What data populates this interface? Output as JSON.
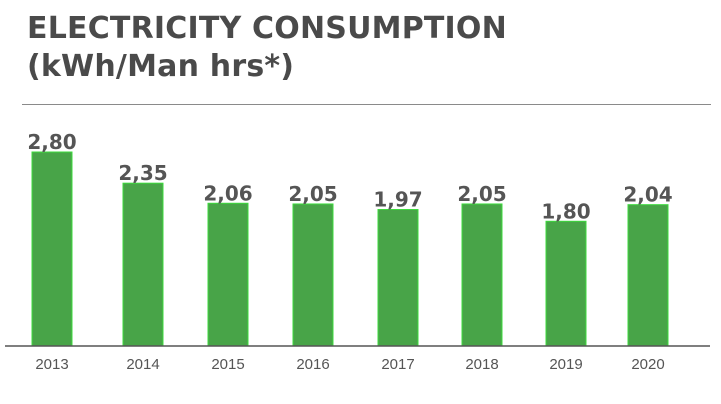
{
  "header": {
    "title_line1": "ELECTRICITY CONSUMPTION",
    "title_line2": "(kWh/Man hrs*)"
  },
  "footnote": "",
  "chart_data": {
    "type": "bar",
    "categories": [
      "2013",
      "2014",
      "2015",
      "2016",
      "2017",
      "2018",
      "2019",
      "2020"
    ],
    "values": [
      2.8,
      2.35,
      2.06,
      2.05,
      1.97,
      2.05,
      1.8,
      2.04
    ],
    "labels": [
      "2,80",
      "2,35",
      "2,06",
      "2,05",
      "1,97",
      "2,05",
      "1,80",
      "2,04"
    ],
    "title": "",
    "xlabel": "",
    "ylabel": "",
    "ylim": [
      0,
      2.8
    ],
    "grid": false,
    "legend": "none",
    "bar_color": "#48a448",
    "bar_outline_color": "#3ddb3d",
    "label_color": "#555555",
    "axis_color": "#555555",
    "tick_color": "#555555"
  }
}
